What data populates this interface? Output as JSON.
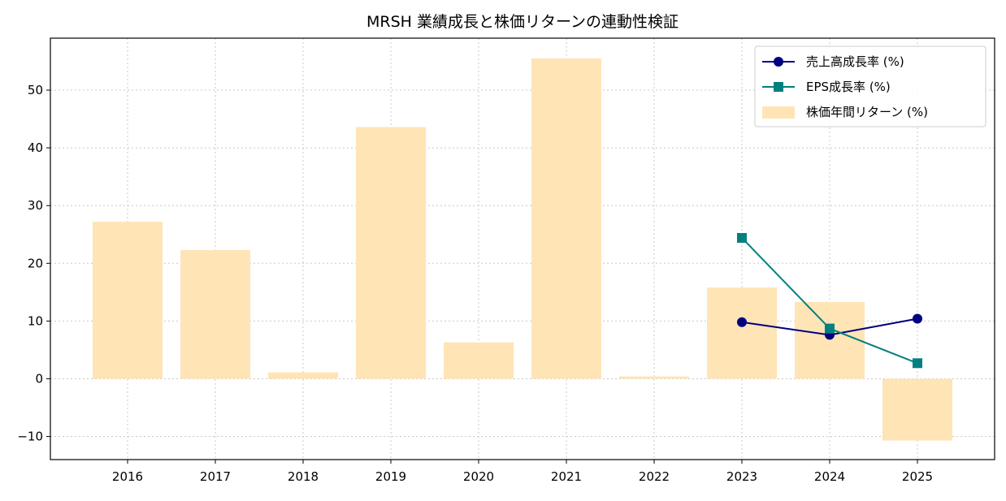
{
  "chart_data": {
    "type": "bar",
    "title": "MRSH 業績成長と株価リターンの連動性検証",
    "xlabel": "",
    "ylabel": "",
    "categories": [
      "2016",
      "2017",
      "2018",
      "2019",
      "2020",
      "2021",
      "2022",
      "2023",
      "2024",
      "2025"
    ],
    "ylim": [
      -14,
      59
    ],
    "yticks": [
      -10,
      0,
      10,
      20,
      30,
      40,
      50
    ],
    "grid": true,
    "legend_position": "top-right",
    "bars": {
      "name": "株価年間リターン (%)",
      "color": "#ffe4b5",
      "values": [
        27.2,
        22.3,
        1.1,
        43.6,
        6.3,
        55.5,
        0.4,
        15.8,
        13.3,
        -10.7
      ]
    },
    "series": [
      {
        "name": "売上高成長率 (%)",
        "type": "line",
        "marker": "circle",
        "color": "#000080",
        "x": [
          "2023",
          "2024",
          "2025"
        ],
        "values": [
          9.8,
          7.6,
          10.4
        ]
      },
      {
        "name": "EPS成長率 (%)",
        "type": "line",
        "marker": "square",
        "color": "#008080",
        "x": [
          "2023",
          "2024",
          "2025"
        ],
        "values": [
          24.4,
          8.7,
          2.7
        ]
      }
    ]
  }
}
